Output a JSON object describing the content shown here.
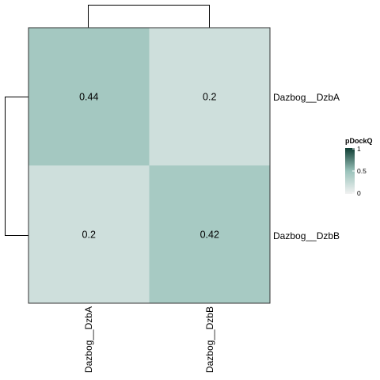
{
  "chart_data": {
    "type": "heatmap",
    "rows": [
      "Dazbog__DzbA",
      "Dazbog__DzbB"
    ],
    "columns": [
      "Dazbog__DzbA",
      "Dazbog__DzbB"
    ],
    "values": [
      [
        0.44,
        0.2
      ],
      [
        0.2,
        0.42
      ]
    ],
    "value_labels": [
      [
        "0.44",
        "0.2"
      ],
      [
        "0.2",
        "0.42"
      ]
    ],
    "row_dendrogram": true,
    "column_dendrogram": true,
    "legend": {
      "title": "pDockQ",
      "ticks": [
        "1",
        "0.5",
        "0"
      ],
      "tick_values": [
        1,
        0.5,
        0
      ],
      "range": [
        0,
        1
      ],
      "placement": "right",
      "colors": {
        "low": "#f2f2f2",
        "mid": "#99c2ba",
        "high": "#0f3d33"
      }
    }
  }
}
